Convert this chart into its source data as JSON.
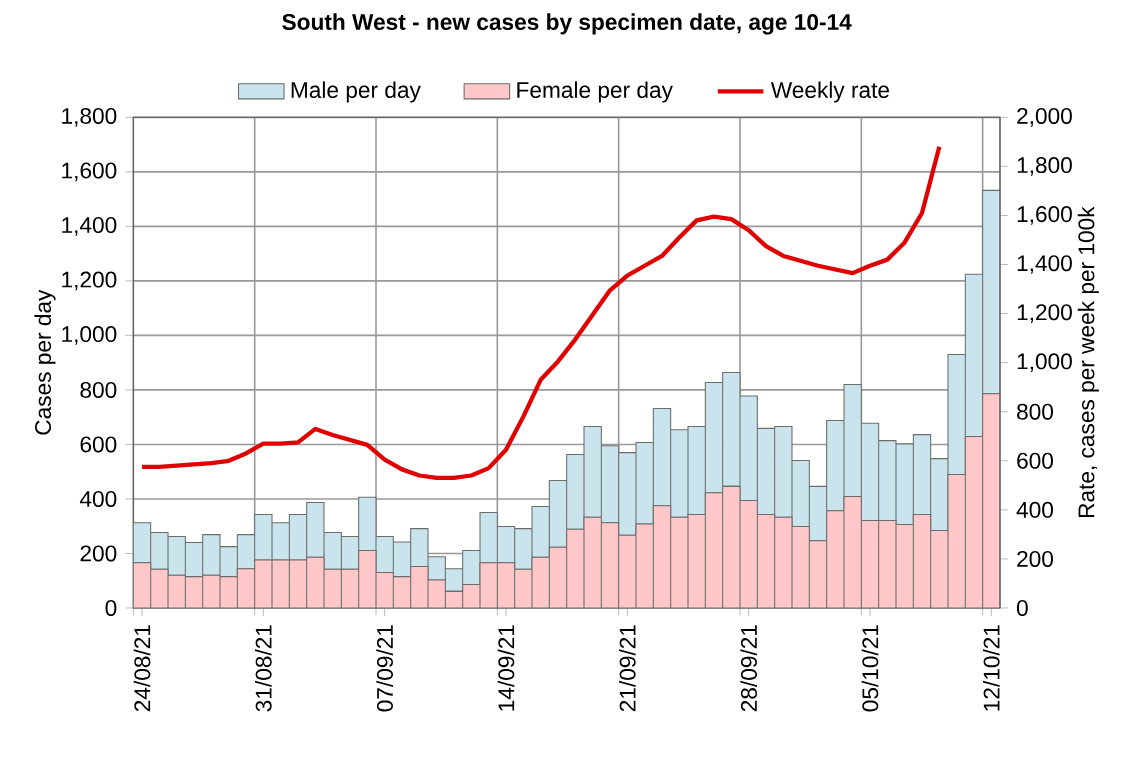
{
  "chart_data": {
    "type": "bar",
    "title": "South West - new cases by specimen date, age 10-14",
    "ylabel": "Cases per day",
    "y2label": "Rate, cases per week per 100k",
    "categories": [
      "24/08/21",
      null,
      null,
      null,
      null,
      null,
      null,
      "31/08/21",
      null,
      null,
      null,
      null,
      null,
      null,
      "07/09/21",
      null,
      null,
      null,
      null,
      null,
      null,
      "14/09/21",
      null,
      null,
      null,
      null,
      null,
      null,
      "21/09/21",
      null,
      null,
      null,
      null,
      null,
      null,
      "28/09/21",
      null,
      null,
      null,
      null,
      null,
      null,
      "05/10/21",
      null,
      null,
      null,
      null,
      null,
      null,
      "12/10/21"
    ],
    "series": [
      {
        "name": "Female per day",
        "type": "bar",
        "color": "#ffc7c7",
        "values": [
          166,
          142,
          120,
          115,
          120,
          115,
          144,
          176,
          176,
          176,
          186,
          142,
          142,
          211,
          130,
          115,
          152,
          103,
          61,
          86,
          166,
          166,
          142,
          186,
          223,
          289,
          333,
          313,
          267,
          308,
          375,
          333,
          343,
          423,
          446,
          394,
          343,
          333,
          299,
          247,
          357,
          409,
          321,
          321,
          306,
          343,
          284,
          490,
          629,
          786
        ]
      },
      {
        "name": "Male per day",
        "type": "bar",
        "color": "#c9e4ec",
        "values": [
          147,
          135,
          142,
          125,
          149,
          110,
          125,
          167,
          137,
          167,
          201,
          135,
          120,
          195,
          132,
          127,
          139,
          85,
          83,
          125,
          184,
          133,
          149,
          186,
          245,
          274,
          333,
          282,
          303,
          299,
          357,
          321,
          323,
          404,
          418,
          384,
          316,
          333,
          242,
          199,
          331,
          411,
          357,
          293,
          296,
          293,
          264,
          440,
          595,
          746
        ]
      },
      {
        "name": "Weekly rate",
        "type": "line",
        "axis": "y2",
        "color": "#e00000",
        "values": [
          575,
          575,
          580,
          585,
          590,
          600,
          630,
          670,
          670,
          675,
          730,
          705,
          685,
          665,
          605,
          565,
          540,
          530,
          530,
          540,
          570,
          645,
          780,
          930,
          1005,
          1095,
          1195,
          1295,
          1355,
          1395,
          1435,
          1510,
          1580,
          1595,
          1585,
          1540,
          1475,
          1435,
          1415,
          1395,
          1380,
          1365,
          1395,
          1420,
          1490,
          1610,
          1880,
          null,
          null,
          null
        ]
      }
    ],
    "stacked": true,
    "ylim": [
      0,
      1800
    ],
    "yticks": [
      0,
      200,
      400,
      600,
      800,
      {
        "value": 1000,
        "label": "1,000"
      },
      {
        "value": 1200,
        "label": "1,200"
      },
      {
        "value": 1400,
        "label": "1,400"
      },
      {
        "value": 1600,
        "label": "1,600"
      },
      {
        "value": 1800,
        "label": "1,800"
      }
    ],
    "y2lim": [
      0,
      2000
    ],
    "y2ticks": [
      0,
      200,
      400,
      600,
      800,
      {
        "value": 1000,
        "label": "1,000"
      },
      {
        "value": 1200,
        "label": "1,200"
      },
      {
        "value": 1400,
        "label": "1,400"
      },
      {
        "value": 1600,
        "label": "1,600"
      },
      {
        "value": 1800,
        "label": "1,800"
      },
      {
        "value": 2000,
        "label": "2,000"
      }
    ],
    "grid": true,
    "legend": "top"
  }
}
